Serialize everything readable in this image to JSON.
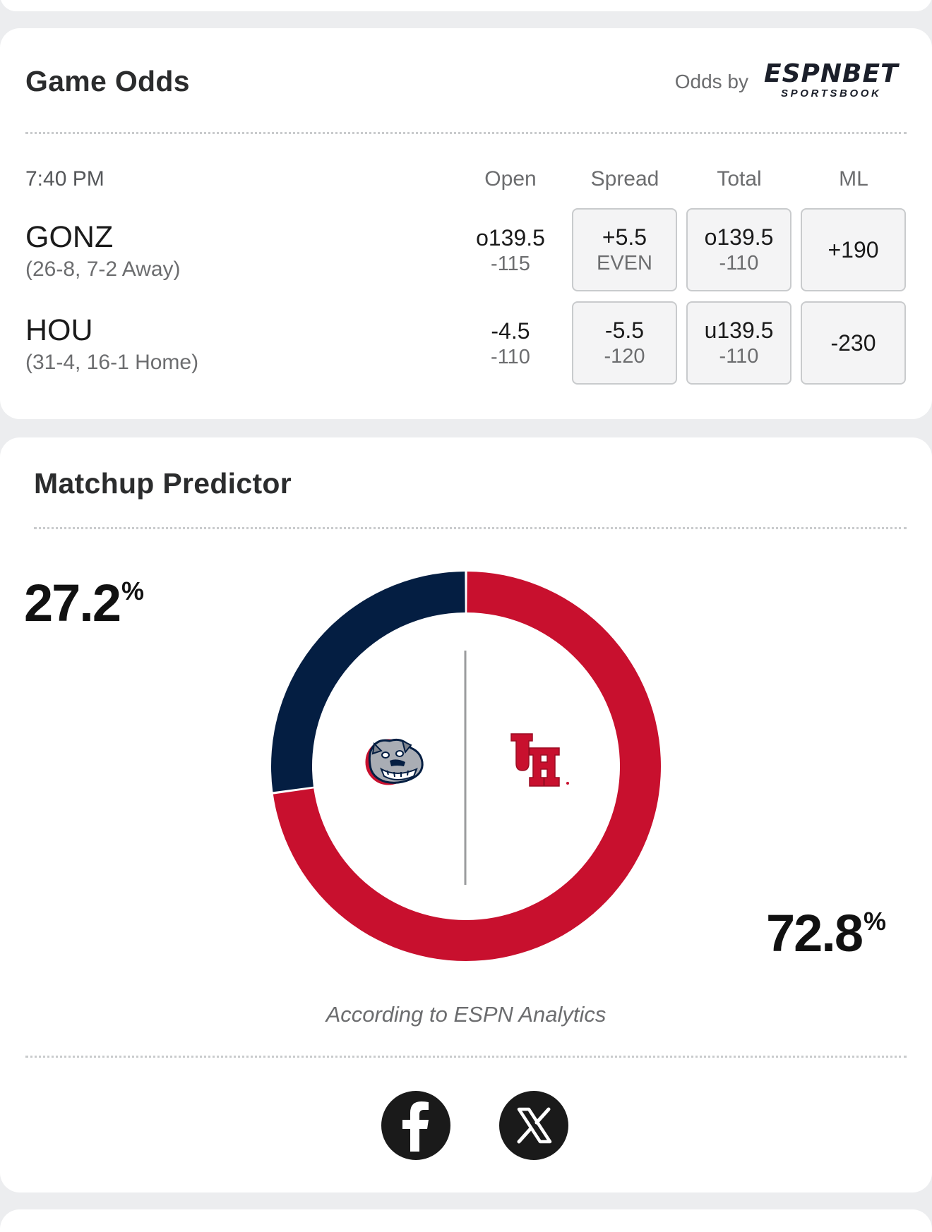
{
  "game_odds": {
    "title": "Game Odds",
    "odds_by": "Odds by",
    "provider": {
      "name": "ESPN BET",
      "main": "ESPNBET",
      "sub": "SPORTSBOOK"
    },
    "time": "7:40 PM",
    "columns": [
      "Open",
      "Spread",
      "Total",
      "ML"
    ],
    "teams": [
      {
        "abbr": "GONZ",
        "record": "(26-8, 7-2 Away)",
        "open": {
          "line": "o139.5",
          "price": "-115"
        },
        "spread": {
          "line": "+5.5",
          "price": "EVEN"
        },
        "total": {
          "line": "o139.5",
          "price": "-110"
        },
        "ml": "+190"
      },
      {
        "abbr": "HOU",
        "record": "(31-4, 16-1 Home)",
        "open": {
          "line": "-4.5",
          "price": "-110"
        },
        "spread": {
          "line": "-5.5",
          "price": "-120"
        },
        "total": {
          "line": "u139.5",
          "price": "-110"
        },
        "ml": "-230"
      }
    ]
  },
  "matchup_predictor": {
    "title": "Matchup Predictor",
    "away_pct": "27.2",
    "home_pct": "72.8",
    "pct_symbol": "%",
    "attribution": "According to ESPN Analytics",
    "away_logo": "gonzaga-bulldog-logo",
    "home_logo": "houston-uh-logo"
  },
  "chart_data": {
    "type": "pie",
    "categories": [
      "GONZ",
      "HOU"
    ],
    "values": [
      27.2,
      72.8
    ],
    "colors": [
      "#041e42",
      "#c8102e"
    ],
    "donut": true
  },
  "share": {
    "icons": [
      "facebook-icon",
      "x-icon"
    ]
  },
  "colors": {
    "away": "#041e42",
    "home": "#c8102e",
    "card": "#ffffff",
    "background": "#ecedef"
  }
}
